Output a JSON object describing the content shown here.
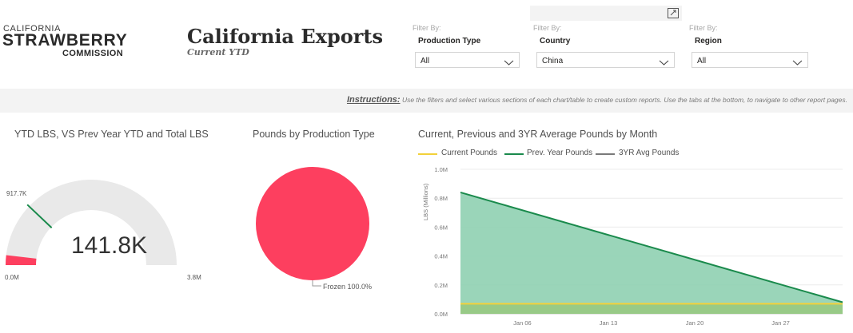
{
  "logo": {
    "line1": "CALIFORNIA",
    "line2": "STRAWBERRY",
    "line3": "COMMISSION"
  },
  "header": {
    "title": "California Exports",
    "subtitle": "Current YTD"
  },
  "filters": [
    {
      "filter_by": "Filter By:",
      "name": "Production Type",
      "value": "All"
    },
    {
      "filter_by": "Filter By:",
      "name": "Country",
      "value": "China"
    },
    {
      "filter_by": "Filter By:",
      "name": "Region",
      "value": "All"
    }
  ],
  "instructions": {
    "label": "Instructions:",
    "text": " Use the filters and select various sections of each chart/table to create custom reports. Use the tabs at the bottom, to navigate to other report pages."
  },
  "gauge": {
    "title": "YTD LBS, VS Prev Year YTD and Total LBS",
    "value_label": "141.8K",
    "value": 141800,
    "target_label": "917.7K",
    "target": 917700,
    "min_label": "0.0M",
    "max_label": "3.8M",
    "max": 3800000,
    "fill_color": "#fd3f5f",
    "track_color": "#e9e9e9",
    "target_color": "#1a8a4c"
  },
  "pie": {
    "title": "Pounds by Production Type",
    "slice_label": "Frozen 100.0%",
    "color": "#fd3f5f"
  },
  "chart_data": {
    "type": "area",
    "title": "Current, Previous and 3YR Average Pounds by Month",
    "ylabel": "LBS (Millions)",
    "ylim": [
      0,
      1.0
    ],
    "yticks": [
      "0.0M",
      "0.2M",
      "0.4M",
      "0.6M",
      "0.8M",
      "1.0M"
    ],
    "xticks": [
      "Jan 06",
      "Jan 13",
      "Jan 20",
      "Jan 27"
    ],
    "series": [
      {
        "name": "Current Pounds",
        "color": "#f2d13a",
        "x": [
          "Jan 01",
          "Feb 01"
        ],
        "values": [
          0.07,
          0.07
        ]
      },
      {
        "name": "Prev. Year Pounds",
        "color": "#1a8a4c",
        "x": [
          "Jan 01",
          "Feb 01"
        ],
        "values": [
          0.84,
          0.08
        ]
      },
      {
        "name": "3YR Avg Pounds",
        "color": "#7a7a7a",
        "x": [
          "Jan 01",
          "Feb 01"
        ],
        "values": [
          0.07,
          0.07
        ]
      }
    ],
    "grid": true,
    "legend_position": "top-left"
  }
}
